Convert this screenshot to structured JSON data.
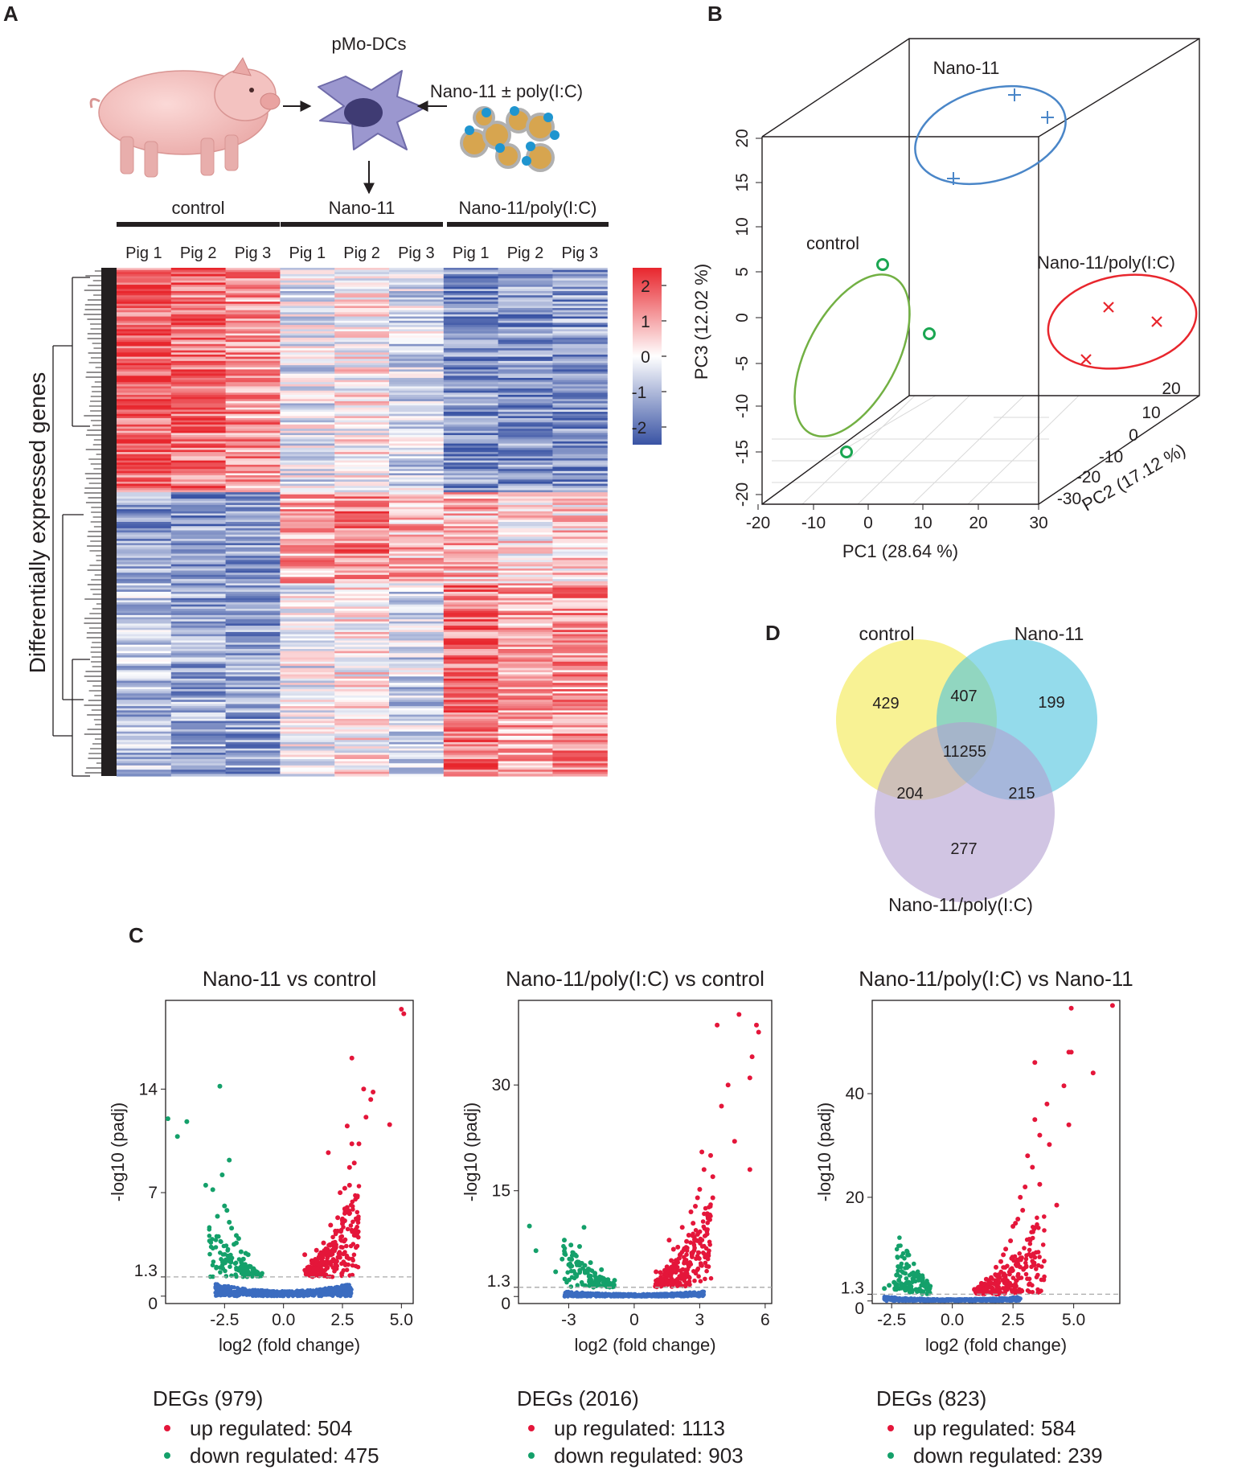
{
  "panels": {
    "a": "A",
    "b": "B",
    "c": "C",
    "d": "D"
  },
  "schematic": {
    "cell_label": "pMo-DCs",
    "treatment_label": "Nano-11 ± poly(I:C)"
  },
  "chart_data": [
    {
      "type": "heatmap",
      "panel": "A",
      "ylabel": "Differentially expressed genes",
      "groups": [
        "control",
        "Nano-11",
        "Nano-11/poly(I:C)"
      ],
      "columns": [
        "Pig 1",
        "Pig 2",
        "Pig 3",
        "Pig 1",
        "Pig 2",
        "Pig 3",
        "Pig 1",
        "Pig 2",
        "Pig 3"
      ],
      "colorbar": {
        "ticks": [
          "2",
          "1",
          "0",
          "-1",
          "-2"
        ],
        "min": -2.5,
        "max": 2.5,
        "low_color": "#3953a4",
        "mid_color": "#ffffff",
        "high_color": "#e8262d"
      },
      "blocks": [
        {
          "rows": 0.44,
          "levels": [
            1.8,
            1.6,
            1.2,
            -0.3,
            0.1,
            -0.5,
            -1.6,
            -1.5,
            -1.4
          ]
        },
        {
          "rows": 0.18,
          "levels": [
            -1.4,
            -1.5,
            -1.4,
            1.0,
            1.4,
            0.8,
            0.8,
            0.3,
            0.5
          ]
        },
        {
          "rows": 0.38,
          "levels": [
            -0.9,
            -1.2,
            -1.3,
            -0.2,
            0.2,
            -0.6,
            1.6,
            1.0,
            1.2
          ]
        }
      ]
    },
    {
      "type": "scatter",
      "panel": "B",
      "xlabel": "PC1 (28.64 %)",
      "ylabel": "PC2 (17.12 %)",
      "zlabel": "PC3 (12.02 %)",
      "xticks": [
        "-20",
        "-10",
        "0",
        "10",
        "20",
        "30"
      ],
      "yticks": [
        "-30",
        "-20",
        "-10",
        "0",
        "10",
        "20"
      ],
      "zticks": [
        "20",
        "15",
        "10",
        "5",
        "0",
        "-5",
        "-10",
        "-15",
        "-20"
      ],
      "series": [
        {
          "name": "Nano-11",
          "marker": "+",
          "color": "#4a86c8",
          "points": [
            [
              20,
              15,
              20
            ],
            [
              26,
              12,
              17
            ],
            [
              10,
              10,
              10
            ]
          ]
        },
        {
          "name": "control",
          "marker": "o",
          "color": "#1aa651",
          "points": [
            [
              -8,
              -5,
              8
            ],
            [
              3,
              -6,
              2
            ],
            [
              -10,
              -10,
              -20
            ]
          ]
        },
        {
          "name": "Nano-11/poly(I:C)",
          "marker": "x",
          "color": "#e8262d",
          "points": [
            [
              25,
              5,
              -2
            ],
            [
              33,
              10,
              -2
            ],
            [
              22,
              0,
              -6
            ]
          ]
        }
      ]
    },
    {
      "type": "scatter",
      "panel": "C",
      "title": "Nano-11 vs control",
      "xlabel": "log2 (fold change)",
      "ylabel": "-log10 (padj)",
      "xticks": [
        "-2.5",
        "0.0",
        "2.5",
        "5.0"
      ],
      "yticks": [
        "0",
        "1.3",
        "7",
        "14"
      ],
      "xlim": [
        -5,
        5.5
      ],
      "ylim": [
        -0.5,
        20
      ],
      "threshold": 1.3,
      "degs_label": "DEGs (979)",
      "up_label": "up regulated: 504",
      "down_label": "down regulated: 475",
      "up_points": [
        [
          5.1,
          19.1
        ],
        [
          5.0,
          19.4
        ],
        [
          2.9,
          16.1
        ],
        [
          4.5,
          11.6
        ],
        [
          3.8,
          13.8
        ],
        [
          3.4,
          14.0
        ],
        [
          1.4,
          3.1
        ],
        [
          2.6,
          5.1
        ],
        [
          1.9,
          9.7
        ],
        [
          0.9,
          2.8
        ],
        [
          3.7,
          13.3
        ],
        [
          2.7,
          11.5
        ],
        [
          1.2,
          2.4
        ],
        [
          2.7,
          6.0
        ],
        [
          2.5,
          4.9
        ],
        [
          1.5,
          2.1
        ],
        [
          3.2,
          10.3
        ],
        [
          2.8,
          7.5
        ],
        [
          2.6,
          5.9
        ],
        [
          1.6,
          2.8
        ],
        [
          1.8,
          3.2
        ],
        [
          2.3,
          5.3
        ],
        [
          2.1,
          3.6
        ],
        [
          2.3,
          4.4
        ],
        [
          2.6,
          7.3
        ],
        [
          2.8,
          8.7
        ],
        [
          3.0,
          9.0
        ],
        [
          3.5,
          12.1
        ],
        [
          2.2,
          4.4
        ],
        [
          1.1,
          1.8
        ],
        [
          1.7,
          3.6
        ],
        [
          2.9,
          10.3
        ],
        [
          2.0,
          4.8
        ],
        [
          1.3,
          1.8
        ],
        [
          2.4,
          7.0
        ]
      ],
      "down_points": [
        [
          -4.9,
          12.0
        ],
        [
          -4.5,
          10.8
        ],
        [
          -4.1,
          11.8
        ],
        [
          -2.7,
          14.2
        ],
        [
          -2.3,
          9.2
        ],
        [
          -2.5,
          6.1
        ],
        [
          -1.7,
          2.5
        ],
        [
          -2.2,
          4.6
        ],
        [
          -1.9,
          3.9
        ],
        [
          -3.3,
          7.5
        ],
        [
          -1.1,
          1.6
        ],
        [
          -2.8,
          5.4
        ],
        [
          -2.0,
          3.6
        ],
        [
          -1.4,
          2.0
        ],
        [
          -3.0,
          7.2
        ],
        [
          -1.6,
          2.9
        ],
        [
          -2.4,
          5.8
        ],
        [
          -2.6,
          8.2
        ],
        [
          -1.3,
          1.8
        ],
        [
          -2.1,
          3.5
        ],
        [
          -1.8,
          3.0
        ],
        [
          -2.3,
          5.0
        ],
        [
          -1.5,
          2.8
        ],
        [
          -2.0,
          4.1
        ]
      ]
    },
    {
      "type": "scatter",
      "panel": "C",
      "title": "Nano-11/poly(I:C) vs control",
      "xlabel": "log2 (fold change)",
      "ylabel": "-log10 (padj)",
      "xticks": [
        "-3",
        "0",
        "3",
        "6"
      ],
      "yticks": [
        "0",
        "1.3",
        "15",
        "30"
      ],
      "xlim": [
        -5.3,
        6.3
      ],
      "ylim": [
        -1,
        42
      ],
      "threshold": 1.3,
      "degs_label": "DEGs (2016)",
      "up_label": "up regulated: 1113",
      "down_label": "down regulated: 903",
      "up_points": [
        [
          4.8,
          40.0
        ],
        [
          3.8,
          38.5
        ],
        [
          5.6,
          38.5
        ],
        [
          5.7,
          37.5
        ],
        [
          5.4,
          34.0
        ],
        [
          5.3,
          31.0
        ],
        [
          4.3,
          30.0
        ],
        [
          3.1,
          20.5
        ],
        [
          5.3,
          18.0
        ],
        [
          3.6,
          14.0
        ],
        [
          2.6,
          12.0
        ],
        [
          1.6,
          8.0
        ],
        [
          1.0,
          3.5
        ],
        [
          3.5,
          20.0
        ],
        [
          2.0,
          7.0
        ],
        [
          4.0,
          27.0
        ],
        [
          2.9,
          14.0
        ],
        [
          1.4,
          3.7
        ],
        [
          4.6,
          22.0
        ],
        [
          1.8,
          6.7
        ],
        [
          3.2,
          18.0
        ],
        [
          2.4,
          7.8
        ],
        [
          2.2,
          9.8
        ],
        [
          3.4,
          11.6
        ],
        [
          2.7,
          10.4
        ],
        [
          1.2,
          3.4
        ],
        [
          3.0,
          15.2
        ],
        [
          2.1,
          5.9
        ],
        [
          1.7,
          5.1
        ],
        [
          2.5,
          8.7
        ],
        [
          3.6,
          17.0
        ],
        [
          1.9,
          4.6
        ],
        [
          2.8,
          12.8
        ],
        [
          2.3,
          6.8
        ],
        [
          1.5,
          4.2
        ]
      ],
      "down_points": [
        [
          -4.8,
          10.0
        ],
        [
          -4.5,
          6.5
        ],
        [
          -3.2,
          8.0
        ],
        [
          -2.3,
          9.8
        ],
        [
          -3.6,
          3.5
        ],
        [
          -2.8,
          6.2
        ],
        [
          -1.5,
          3.8
        ],
        [
          -2.0,
          4.8
        ],
        [
          -1.2,
          2.4
        ],
        [
          -2.7,
          5.9
        ],
        [
          -1.8,
          3.3
        ],
        [
          -0.9,
          2.3
        ],
        [
          -3.0,
          4.5
        ],
        [
          -2.5,
          7.1
        ],
        [
          -2.1,
          3.9
        ],
        [
          -1.6,
          2.7
        ],
        [
          -2.9,
          7.3
        ],
        [
          -3.3,
          5.3
        ],
        [
          -1.4,
          2.0
        ],
        [
          -2.4,
          4.7
        ],
        [
          -2.0,
          2.9
        ],
        [
          -2.6,
          4.9
        ]
      ]
    },
    {
      "type": "scatter",
      "panel": "C",
      "title": "Nano-11/poly(I:C) vs Nano-11",
      "xlabel": "log2 (fold change)",
      "ylabel": "-log10 (padj)",
      "xticks": [
        "-2.5",
        "0.0",
        "2.5",
        "5.0"
      ],
      "yticks": [
        "0",
        "1.3",
        "20",
        "40"
      ],
      "xlim": [
        -3.3,
        6.9
      ],
      "ylim": [
        -0.5,
        58
      ],
      "threshold": 1.3,
      "degs_label": "DEGs (823)",
      "up_label": "up regulated: 584",
      "down_label": "down regulated: 239",
      "up_points": [
        [
          6.6,
          57.0
        ],
        [
          4.9,
          56.5
        ],
        [
          4.8,
          48.0
        ],
        [
          4.9,
          48.0
        ],
        [
          5.8,
          44.0
        ],
        [
          3.4,
          46.0
        ],
        [
          4.6,
          41.5
        ],
        [
          3.9,
          38.0
        ],
        [
          3.6,
          32.0
        ],
        [
          4.8,
          34.0
        ],
        [
          3.0,
          22.0
        ],
        [
          1.6,
          4.5
        ],
        [
          2.2,
          10.0
        ],
        [
          4.3,
          18.5
        ],
        [
          2.6,
          15.0
        ],
        [
          1.2,
          3.4
        ],
        [
          3.4,
          35.0
        ],
        [
          2.8,
          20.0
        ],
        [
          3.1,
          28.0
        ],
        [
          2.5,
          14.4
        ],
        [
          2.1,
          8.9
        ],
        [
          3.3,
          25.8
        ],
        [
          1.8,
          6.5
        ],
        [
          4.0,
          30.2
        ],
        [
          2.9,
          17.5
        ],
        [
          2.4,
          11.6
        ],
        [
          1.4,
          4.2
        ],
        [
          3.6,
          22.5
        ],
        [
          2.0,
          7.6
        ],
        [
          2.7,
          15.8
        ]
      ],
      "down_points": [
        [
          -2.3,
          5.0
        ],
        [
          -2.2,
          4.0
        ],
        [
          -2.8,
          2.4
        ],
        [
          -1.8,
          2.6
        ],
        [
          -1.2,
          1.8
        ],
        [
          -2.6,
          3.0
        ],
        [
          -1.5,
          2.2
        ],
        [
          -2.0,
          3.1
        ],
        [
          -1.0,
          1.6
        ],
        [
          -1.7,
          2.8
        ],
        [
          -2.4,
          3.6
        ],
        [
          -1.3,
          2.0
        ],
        [
          -2.1,
          2.5
        ],
        [
          -1.9,
          3.4
        ]
      ]
    }
  ],
  "venn": {
    "sets": [
      {
        "name": "control",
        "color": "#f5eb5a",
        "only": "429"
      },
      {
        "name": "Nano-11",
        "color": "#4cc3dd",
        "only": "199"
      },
      {
        "name": "Nano-11/poly(I:C)",
        "color": "#b39fd0",
        "only": "277"
      }
    ],
    "ab": "407",
    "ac": "204",
    "bc": "215",
    "abc": "11255"
  }
}
